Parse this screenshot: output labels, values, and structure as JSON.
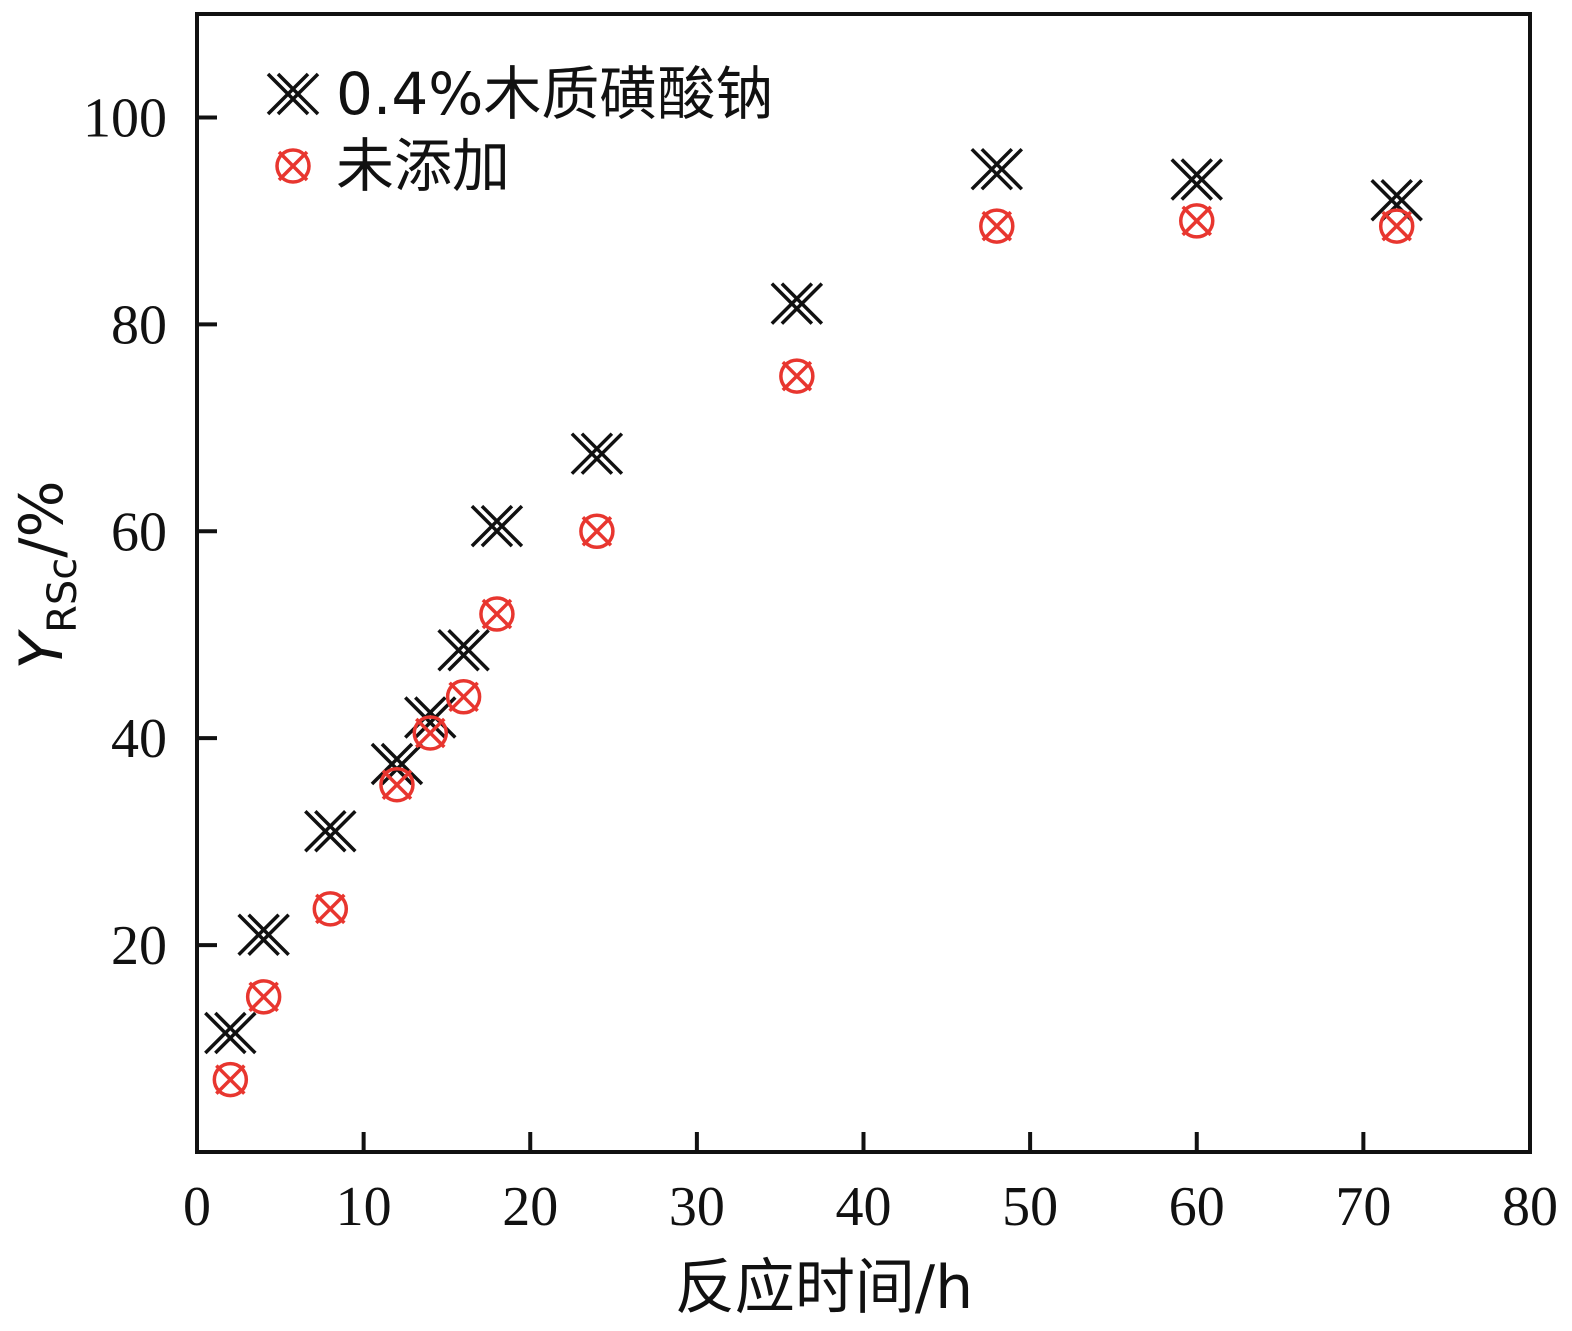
{
  "chart_data": {
    "type": "scatter",
    "xlabel": "反应时间/h",
    "ylabel": {
      "main": "Y",
      "subscript": "RSc",
      "suffix": "/%"
    },
    "xlim": [
      0,
      80
    ],
    "ylim": [
      0,
      110
    ],
    "xticks": [
      0,
      10,
      20,
      30,
      40,
      50,
      60,
      70,
      80
    ],
    "yticks": [
      20,
      40,
      60,
      80,
      100
    ],
    "grid": false,
    "legend_position": "top-left",
    "series": [
      {
        "name": "0.4%木质磺酸钠",
        "marker": "double-x",
        "color": "#111111",
        "x": [
          2,
          4,
          8,
          12,
          14,
          16,
          18,
          24,
          36,
          48,
          60,
          72
        ],
        "y": [
          11.5,
          21,
          31,
          37.5,
          42,
          48.5,
          60.5,
          67.5,
          82,
          95,
          94,
          92
        ]
      },
      {
        "name": "未添加",
        "marker": "circle-x",
        "color": "#e8362f",
        "x": [
          2,
          4,
          8,
          12,
          14,
          16,
          18,
          24,
          36,
          48,
          60,
          72
        ],
        "y": [
          7,
          15,
          23.5,
          35.5,
          40.5,
          44,
          52,
          60,
          75,
          89.5,
          90,
          89.5
        ]
      }
    ]
  }
}
